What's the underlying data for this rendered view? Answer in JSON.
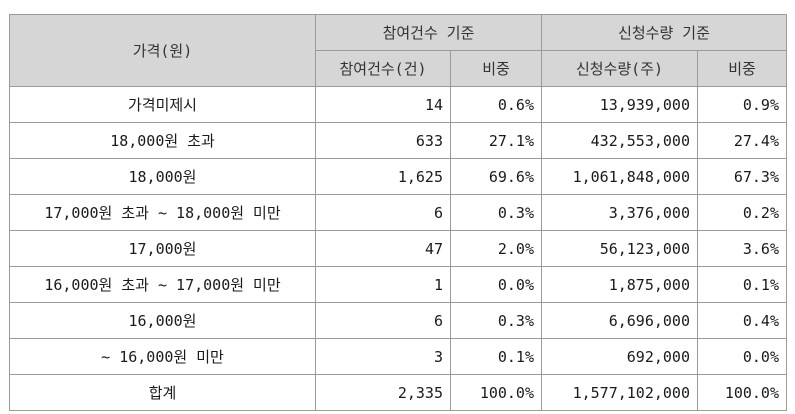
{
  "header": {
    "price_col": "가격(원)",
    "group_participation": "참여건수 기준",
    "group_request": "신청수량 기준",
    "participation_count": "참여건수(건)",
    "participation_ratio": "비중",
    "request_qty": "신청수량(주)",
    "request_ratio": "비중"
  },
  "rows": [
    {
      "label": "가격미제시",
      "count": "14",
      "count_ratio": "0.6%",
      "qty": "13,939,000",
      "qty_ratio": "0.9%"
    },
    {
      "label": "18,000원 초과",
      "count": "633",
      "count_ratio": "27.1%",
      "qty": "432,553,000",
      "qty_ratio": "27.4%"
    },
    {
      "label": "18,000원",
      "count": "1,625",
      "count_ratio": "69.6%",
      "qty": "1,061,848,000",
      "qty_ratio": "67.3%"
    },
    {
      "label": "17,000원 초과 ~ 18,000원 미만",
      "count": "6",
      "count_ratio": "0.3%",
      "qty": "3,376,000",
      "qty_ratio": "0.2%"
    },
    {
      "label": "17,000원",
      "count": "47",
      "count_ratio": "2.0%",
      "qty": "56,123,000",
      "qty_ratio": "3.6%"
    },
    {
      "label": "16,000원 초과 ~ 17,000원 미만",
      "count": "1",
      "count_ratio": "0.0%",
      "qty": "1,875,000",
      "qty_ratio": "0.1%"
    },
    {
      "label": "16,000원",
      "count": "6",
      "count_ratio": "0.3%",
      "qty": "6,696,000",
      "qty_ratio": "0.4%"
    },
    {
      "label": "~ 16,000원 미만",
      "count": "3",
      "count_ratio": "0.1%",
      "qty": "692,000",
      "qty_ratio": "0.0%"
    },
    {
      "label": "합계",
      "count": "2,335",
      "count_ratio": "100.0%",
      "qty": "1,577,102,000",
      "qty_ratio": "100.0%"
    }
  ]
}
